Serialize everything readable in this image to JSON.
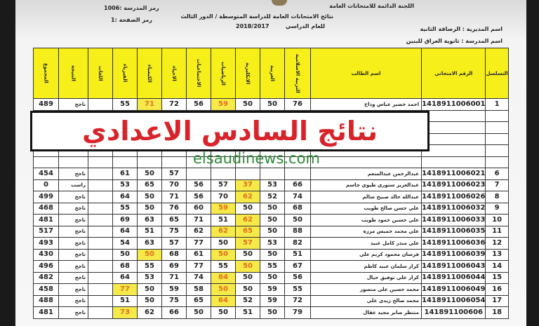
{
  "header": {
    "committee": "اللجنة الدائمة للامتحانات العامة",
    "title": "نتائج الامتحانات العامة للدراسة المتوسطة / الدور الثالث",
    "year_label": "للعام الدراسي",
    "year": "2018/2017",
    "school_code": "رمز المدرسة :1006",
    "page_code": "رمز الصفحة :1",
    "directorate": "اسم المديرية :  الرصافة الثانية",
    "school": "اسم المدرسة :  ثانوية العراق للبنين"
  },
  "columns": [
    "التسلسل",
    "الرقم الامتحاني",
    "اسم الطالب",
    "التربية الاسلامية",
    "العربية",
    "الانكليزية",
    "الرياضيات",
    "الاجتماعيات",
    "الاحياء",
    "الكيمياء",
    "الفيزياء",
    "اللغات",
    "النتيجة",
    "المجموع"
  ],
  "rows": [
    {
      "n": "1",
      "id": "1418911006001",
      "name": "احمد خضير عباس وذاح",
      "m": [
        "76",
        "50",
        "50",
        "59",
        "56",
        "72",
        "71",
        "55",
        ""
      ],
      "res": "ناجح",
      "tot": "489",
      "hl": [
        3,
        6
      ]
    },
    {
      "n": "6",
      "id": "1418911006021",
      "name": "عبدالرحمن عبدالمنعم",
      "m": [
        "",
        "",
        "",
        "",
        "",
        "57",
        "50",
        "61",
        ""
      ],
      "res": "ناجح",
      "tot": "454",
      "hl": []
    },
    {
      "n": "7",
      "id": "1418911006023",
      "name": "عبدالعزيز ستوري طيوي جاسم",
      "m": [
        "66",
        "53",
        "37",
        "57",
        "56",
        "70",
        "65",
        "53",
        ""
      ],
      "res": "راسب",
      "tot": "0",
      "hl": [
        2
      ]
    },
    {
      "n": "8",
      "id": "1418911006026",
      "name": "عبدالله خالد صبيح سالم",
      "m": [
        "74",
        "52",
        "62",
        "70",
        "56",
        "71",
        "50",
        "64",
        ""
      ],
      "res": "ناجح",
      "tot": "499",
      "hl": [
        2
      ]
    },
    {
      "n": "9",
      "id": "1418911006032",
      "name": "علي حسن صالح طويب",
      "m": [
        "68",
        "50",
        "50",
        "59",
        "60",
        "76",
        "50",
        "55",
        ""
      ],
      "res": "ناجح",
      "tot": "468",
      "hl": [
        3
      ]
    },
    {
      "n": "10",
      "id": "1418911006033",
      "name": "علي حسين حمود طويب",
      "m": [
        "50",
        "50",
        "62",
        "51",
        "71",
        "65",
        "63",
        "69",
        ""
      ],
      "res": "ناجح",
      "tot": "481",
      "hl": [
        2
      ]
    },
    {
      "n": "11",
      "id": "1418911006035",
      "name": "علي محمد خميس مرزه",
      "m": [
        "88",
        "50",
        "65",
        "62",
        "62",
        "75",
        "51",
        "64",
        ""
      ],
      "res": "ناجح",
      "tot": "517",
      "hl": [
        2,
        3
      ]
    },
    {
      "n": "12",
      "id": "1418911006036",
      "name": "علي منذر كامل عبيد",
      "m": [
        "82",
        "53",
        "57",
        "50",
        "77",
        "57",
        "63",
        "54",
        ""
      ],
      "res": "ناجح",
      "tot": "493",
      "hl": [
        2
      ]
    },
    {
      "n": "13",
      "id": "1418911006039",
      "name": "فرسان محمود كريم علي",
      "m": [
        "51",
        "50",
        "50",
        "50",
        "61",
        "68",
        "50",
        "50",
        ""
      ],
      "res": "ناجح",
      "tot": "430",
      "hl": [
        3,
        6
      ]
    },
    {
      "n": "14",
      "id": "1418911006043",
      "name": "كرار سلمان عبيد كاظم",
      "m": [
        "67",
        "55",
        "50",
        "55",
        "77",
        "69",
        "55",
        "68",
        ""
      ],
      "res": "ناجح",
      "tot": "496",
      "hl": [
        2
      ]
    },
    {
      "n": "15",
      "id": "1418911006044",
      "name": "كرار علي توفيق حيال",
      "m": [
        "56",
        "50",
        "50",
        "64",
        "74",
        "71",
        "53",
        "64",
        ""
      ],
      "res": "ناجح",
      "tot": "482",
      "hl": [
        3
      ]
    },
    {
      "n": "16",
      "id": "1418911006049",
      "name": "محمد حسين علي منصور",
      "m": [
        "55",
        "59",
        "50",
        "50",
        "58",
        "59",
        "50",
        "77",
        ""
      ],
      "res": "ناجح",
      "tot": "458",
      "hl": [
        3,
        7
      ]
    },
    {
      "n": "17",
      "id": "1418911006054",
      "name": "محمد صالح زيدي علي",
      "m": [
        "72",
        "59",
        "52",
        "64",
        "65",
        "75",
        "50",
        "51",
        ""
      ],
      "res": "ناجح",
      "tot": "488",
      "hl": [
        3
      ]
    },
    {
      "n": "18",
      "id": "141891100606",
      "name": "منتظر صابر مجيد عقال",
      "m": [
        "79",
        "50",
        "51",
        "50",
        "50",
        "66",
        "62",
        "73",
        ""
      ],
      "res": "ناجح",
      "tot": "481",
      "hl": [
        7
      ]
    }
  ],
  "banner": "نتائج السادس الاعدادي",
  "watermark": "elsaudinews.com",
  "colors": {
    "header_fill": "#f6ef1a",
    "highlight_fill": "#f6e94a",
    "highlight_text": "#e0701a",
    "banner_text": "#d9232a",
    "watermark": "#2f8a3a"
  }
}
